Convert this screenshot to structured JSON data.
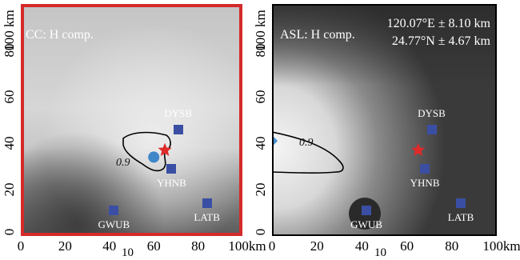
{
  "left_panel": {
    "title": "CC: H comp.",
    "contour_label": "0.9",
    "stations": [
      {
        "name": "DYSB",
        "x": 71,
        "y": 46
      },
      {
        "name": "YHNB",
        "x": 68,
        "y": 29
      },
      {
        "name": "GWUB",
        "x": 42,
        "y": 11
      },
      {
        "name": "LATB",
        "x": 84,
        "y": 14
      }
    ],
    "estimated_source": {
      "x": 60,
      "y": 34
    },
    "true_epicenter": {
      "x": 65,
      "y": 37
    }
  },
  "right_panel": {
    "title": "ASL: H comp.",
    "lon_text": "120.07°E ± 8.10 km",
    "lat_text": "24.77°N ± 4.67 km",
    "contour_label": "0.9",
    "stations": [
      {
        "name": "DYSB",
        "x": 71,
        "y": 46
      },
      {
        "name": "YHNB",
        "x": 68,
        "y": 29
      },
      {
        "name": "GWUB",
        "x": 42,
        "y": 11
      },
      {
        "name": "LATB",
        "x": 84,
        "y": 14
      }
    ],
    "estimated_source": {
      "x": 0,
      "y": 41
    },
    "true_epicenter": {
      "x": 65,
      "y": 37
    }
  },
  "axes": {
    "x_ticks": [
      "0",
      "20",
      "40",
      "60",
      "80",
      "100km"
    ],
    "y_ticks": [
      "0",
      "20",
      "40",
      "60",
      "80",
      "100 km"
    ],
    "x_range": [
      0,
      100
    ],
    "y_range": [
      0,
      100
    ],
    "stray_label": "10"
  },
  "colors": {
    "frame_left": "#d42a2a",
    "station": "#3a4fa3",
    "epicenter": "#e02a2a",
    "source_left": "#3f86c9",
    "source_right": "#4a90d0"
  }
}
